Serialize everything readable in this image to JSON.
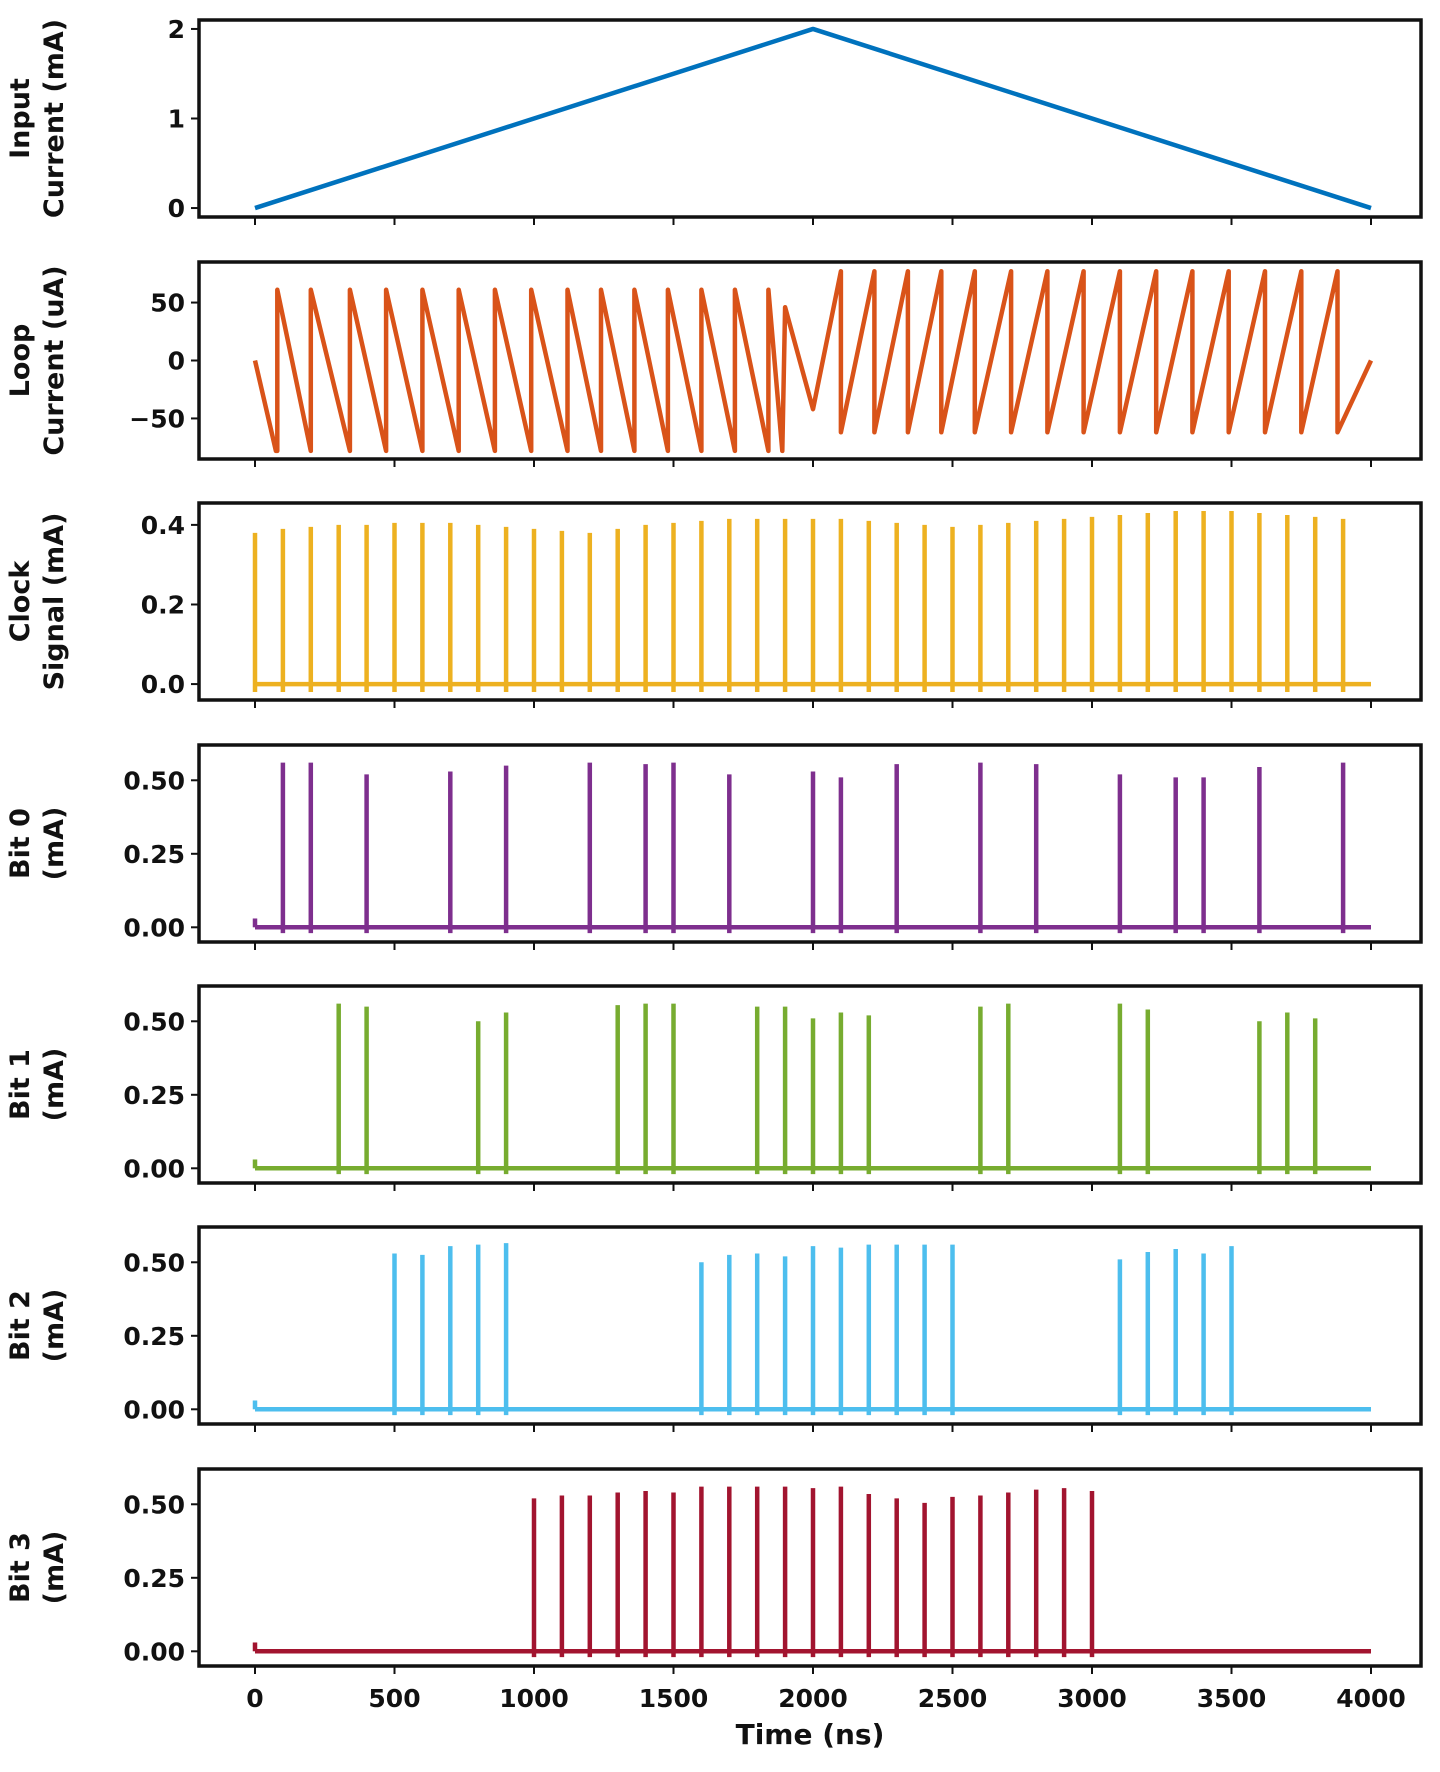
{
  "chart_data": {
    "type": "line",
    "xlabel": "Time (ns)",
    "xlim": [
      0,
      4000
    ],
    "xticks": [
      0,
      500,
      1000,
      1500,
      2000,
      2500,
      3000,
      3500,
      4000
    ],
    "xtick_labels": [
      "0",
      "500",
      "1000",
      "1500",
      "2000",
      "2500",
      "3000",
      "3500",
      "4000"
    ],
    "panels": [
      {
        "key": "input",
        "ylabel_lines": [
          "Input",
          "Current (mA)"
        ],
        "color": "#0072BD",
        "kind": "triangle",
        "yticks": [
          0,
          1,
          2
        ],
        "ytick_labels": [
          "0",
          "1",
          "2"
        ],
        "ylim": [
          -0.1,
          2.1
        ],
        "points": [
          [
            0,
            0
          ],
          [
            2000,
            2
          ],
          [
            4000,
            0
          ]
        ]
      },
      {
        "key": "loop",
        "ylabel_lines": [
          "Loop",
          "Current (uA)"
        ],
        "color": "#D95319",
        "kind": "sawtooth",
        "yticks": [
          -50,
          0,
          50
        ],
        "ytick_labels": [
          "−50",
          "0",
          "50"
        ],
        "ylim": [
          -85,
          85
        ],
        "first_half": {
          "peak": 61,
          "trough": -78,
          "edges": [
            0,
            80,
            200,
            340,
            470,
            600,
            730,
            860,
            990,
            1120,
            1240,
            1360,
            1480,
            1600,
            1720,
            1840
          ]
        },
        "second_half": {
          "peak": 77,
          "trough": -62,
          "edges": [
            2100,
            2220,
            2340,
            2460,
            2580,
            2710,
            2840,
            2970,
            3100,
            3230,
            3360,
            3490,
            3620,
            3750,
            3880
          ]
        },
        "start_value": 0,
        "mid_time": 2000,
        "mid_value": -42,
        "end_value": 0
      },
      {
        "key": "clock",
        "ylabel_lines": [
          "Clock",
          "Signal (mA)"
        ],
        "color": "#EDB120",
        "kind": "spikes",
        "yticks": [
          0,
          0.2,
          0.4
        ],
        "ytick_labels": [
          "0.0",
          "0.2",
          "0.4"
        ],
        "ylim": [
          -0.04,
          0.455
        ],
        "spike_times": [
          0,
          100,
          200,
          300,
          400,
          500,
          600,
          700,
          800,
          900,
          1000,
          1100,
          1200,
          1300,
          1400,
          1500,
          1600,
          1700,
          1800,
          1900,
          2000,
          2100,
          2200,
          2300,
          2400,
          2500,
          2600,
          2700,
          2800,
          2900,
          3000,
          3100,
          3200,
          3300,
          3400,
          3500,
          3600,
          3700,
          3800,
          3900
        ],
        "spike_values": [
          0.38,
          0.39,
          0.395,
          0.4,
          0.4,
          0.405,
          0.405,
          0.405,
          0.4,
          0.395,
          0.39,
          0.385,
          0.38,
          0.39,
          0.4,
          0.405,
          0.41,
          0.415,
          0.415,
          0.415,
          0.415,
          0.415,
          0.41,
          0.405,
          0.4,
          0.395,
          0.4,
          0.405,
          0.41,
          0.415,
          0.42,
          0.425,
          0.43,
          0.435,
          0.435,
          0.435,
          0.43,
          0.425,
          0.42,
          0.415
        ],
        "undershoot": -0.02
      },
      {
        "key": "bit0",
        "ylabel_lines": [
          "Bit 0",
          "(mA)"
        ],
        "color": "#7E2F8E",
        "kind": "spikes",
        "yticks": [
          0,
          0.25,
          0.5
        ],
        "ytick_labels": [
          "0.00",
          "0.25",
          "0.50"
        ],
        "ylim": [
          -0.05,
          0.62
        ],
        "spike_times": [
          100,
          200,
          400,
          700,
          900,
          1200,
          1400,
          1500,
          1700,
          2000,
          2100,
          2300,
          2600,
          2800,
          3100,
          3300,
          3400,
          3600,
          3900
        ],
        "spike_values": [
          0.56,
          0.56,
          0.52,
          0.53,
          0.55,
          0.56,
          0.555,
          0.56,
          0.52,
          0.53,
          0.51,
          0.555,
          0.56,
          0.555,
          0.52,
          0.51,
          0.51,
          0.545,
          0.56
        ],
        "undershoot": -0.02,
        "start_blip": 0.03
      },
      {
        "key": "bit1",
        "ylabel_lines": [
          "Bit 1",
          "(mA)"
        ],
        "color": "#77AC30",
        "kind": "spikes",
        "yticks": [
          0,
          0.25,
          0.5
        ],
        "ytick_labels": [
          "0.00",
          "0.25",
          "0.50"
        ],
        "ylim": [
          -0.05,
          0.62
        ],
        "spike_times": [
          300,
          400,
          800,
          900,
          1300,
          1400,
          1500,
          1800,
          1900,
          2000,
          2100,
          2200,
          2600,
          2700,
          3100,
          3200,
          3600,
          3700,
          3800
        ],
        "spike_values": [
          0.56,
          0.55,
          0.5,
          0.53,
          0.555,
          0.56,
          0.56,
          0.55,
          0.55,
          0.51,
          0.53,
          0.52,
          0.55,
          0.56,
          0.56,
          0.54,
          0.5,
          0.53,
          0.51
        ],
        "undershoot": -0.02,
        "start_blip": 0.03
      },
      {
        "key": "bit2",
        "ylabel_lines": [
          "Bit 2",
          "(mA)"
        ],
        "color": "#4DBEEE",
        "kind": "spikes",
        "yticks": [
          0,
          0.25,
          0.5
        ],
        "ytick_labels": [
          "0.00",
          "0.25",
          "0.50"
        ],
        "ylim": [
          -0.05,
          0.62
        ],
        "spike_times": [
          500,
          600,
          700,
          800,
          900,
          1600,
          1700,
          1800,
          1900,
          2000,
          2100,
          2200,
          2300,
          2400,
          2500,
          3100,
          3200,
          3300,
          3400,
          3500
        ],
        "spike_values": [
          0.53,
          0.525,
          0.555,
          0.56,
          0.565,
          0.5,
          0.525,
          0.53,
          0.52,
          0.555,
          0.55,
          0.56,
          0.56,
          0.56,
          0.56,
          0.51,
          0.535,
          0.545,
          0.53,
          0.555
        ],
        "undershoot": -0.02,
        "start_blip": 0.03
      },
      {
        "key": "bit3",
        "ylabel_lines": [
          "Bit 3",
          "(mA)"
        ],
        "color": "#A2142F",
        "kind": "spikes",
        "yticks": [
          0,
          0.25,
          0.5
        ],
        "ytick_labels": [
          "0.00",
          "0.25",
          "0.50"
        ],
        "ylim": [
          -0.05,
          0.62
        ],
        "spike_times": [
          1000,
          1100,
          1200,
          1300,
          1400,
          1500,
          1600,
          1700,
          1800,
          1900,
          2000,
          2100,
          2200,
          2300,
          2400,
          2500,
          2600,
          2700,
          2800,
          2900,
          3000
        ],
        "spike_values": [
          0.52,
          0.53,
          0.53,
          0.54,
          0.545,
          0.54,
          0.56,
          0.56,
          0.56,
          0.56,
          0.555,
          0.56,
          0.535,
          0.52,
          0.505,
          0.525,
          0.53,
          0.54,
          0.55,
          0.555,
          0.545
        ],
        "undershoot": -0.02,
        "start_blip": 0.03
      }
    ]
  }
}
